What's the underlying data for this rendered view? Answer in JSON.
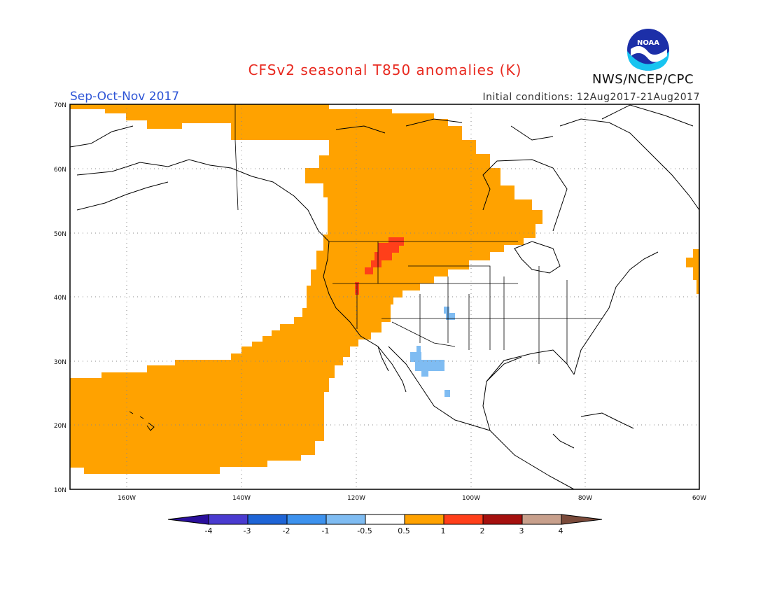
{
  "title": "CFSv2 seasonal T850 anomalies (K)",
  "season": "Sep-Oct-Nov 2017",
  "initial_conditions": "Initial conditions: 12Aug2017-21Aug2017",
  "agency": "NWS/NCEP/CPC",
  "logo_text": "NOAA",
  "lat_labels": [
    "70N",
    "60N",
    "50N",
    "40N",
    "30N",
    "20N",
    "10N"
  ],
  "lon_labels": [
    "160W",
    "140W",
    "120W",
    "100W",
    "80W",
    "60W"
  ],
  "colorbar": {
    "ticks": [
      "-4",
      "-3",
      "-2",
      "-1",
      "-0.5",
      "0.5",
      "1",
      "2",
      "3",
      "4"
    ],
    "colors": [
      "#2a0f9c",
      "#4a3bd0",
      "#1e64d6",
      "#3d92ee",
      "#7fbcf2",
      "#ffffff",
      "#ffa200",
      "#ff3f1a",
      "#a5100e",
      "#c8a08c",
      "#7a4a3a"
    ]
  },
  "colors": {
    "positive_anomaly": "#ffa200",
    "strong_positive": "#ff3f1a",
    "negative_anomaly": "#7fbcf2"
  }
}
